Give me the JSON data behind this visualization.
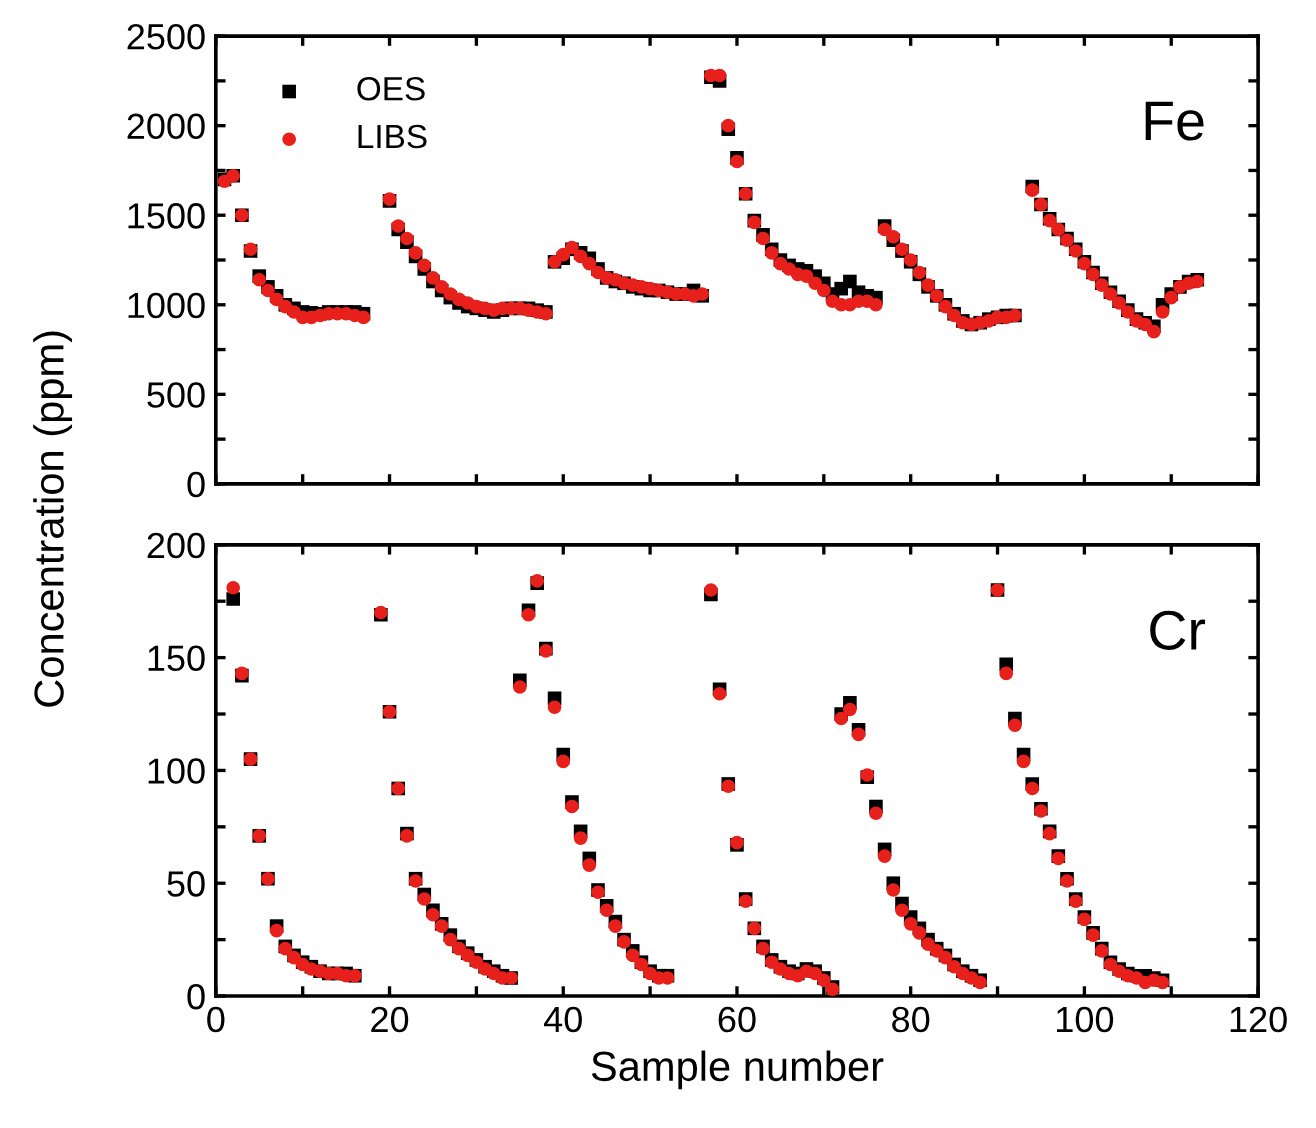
{
  "chart_data": [
    {
      "type": "scatter",
      "ylabel": "Concentration (ppm)",
      "annotations": [
        "Fe"
      ],
      "legend": "top left",
      "tick_labels": "y",
      "grid": false,
      "xlim": [
        0,
        120
      ],
      "xticks": [
        0,
        {
          "value": 10,
          "label": null
        },
        20,
        {
          "value": 30,
          "label": null
        },
        40,
        {
          "value": 50,
          "label": null
        },
        60,
        {
          "value": 70,
          "label": null
        },
        80,
        {
          "value": 90,
          "label": null
        },
        100,
        {
          "value": 110,
          "label": null
        },
        120
      ],
      "ylim": [
        0,
        2500
      ],
      "yticks": [
        0,
        {
          "value": 250,
          "label": null
        },
        500,
        {
          "value": 750,
          "label": null
        },
        1000,
        {
          "value": 1250,
          "label": null
        },
        1500,
        {
          "value": 1750,
          "label": null
        },
        2000,
        {
          "value": 2250,
          "label": null
        },
        2500
      ],
      "x": [
        1,
        2,
        3,
        4,
        5,
        6,
        7,
        8,
        9,
        10,
        11,
        12,
        13,
        14,
        15,
        16,
        17,
        18,
        19,
        20,
        21,
        22,
        23,
        24,
        25,
        26,
        27,
        28,
        29,
        30,
        31,
        32,
        33,
        34,
        35,
        36,
        37,
        38,
        39,
        40,
        41,
        42,
        43,
        44,
        45,
        46,
        47,
        48,
        49,
        50,
        51,
        52,
        53,
        54,
        55,
        56,
        57,
        58,
        59,
        60,
        61,
        62,
        63,
        64,
        65,
        66,
        67,
        68,
        69,
        70,
        71,
        72,
        73,
        74,
        75,
        76,
        77,
        78,
        79,
        80,
        81,
        82,
        83,
        84,
        85,
        86,
        87,
        88,
        89,
        90,
        91,
        92,
        93,
        94,
        95,
        96,
        97,
        98,
        99,
        100,
        101,
        102,
        103,
        104,
        105,
        106,
        107,
        108,
        109,
        110,
        111,
        112,
        113
      ],
      "series": [
        {
          "name": "OES",
          "color": "#000000",
          "marker": "square",
          "values": [
            1700,
            1720,
            1500,
            1300,
            1160,
            1100,
            1050,
            1000,
            980,
            960,
            955,
            950,
            960,
            960,
            960,
            960,
            950,
            null,
            null,
            1580,
            1420,
            1350,
            1270,
            1200,
            1130,
            1080,
            1040,
            1010,
            990,
            980,
            970,
            960,
            970,
            980,
            980,
            980,
            970,
            960,
            1240,
            1260,
            1310,
            1290,
            1260,
            1200,
            1150,
            1130,
            1120,
            1100,
            1090,
            1080,
            1080,
            1070,
            1060,
            1060,
            1080,
            1050,
            2270,
            2250,
            1980,
            1820,
            1620,
            1470,
            1390,
            1310,
            1250,
            1220,
            1200,
            1190,
            1160,
            1120,
            1060,
            1090,
            1130,
            1070,
            1050,
            1040,
            1440,
            1360,
            1300,
            1240,
            1170,
            1100,
            1050,
            1000,
            950,
            910,
            890,
            900,
            920,
            930,
            940,
            940,
            null,
            1660,
            1560,
            1480,
            1420,
            1370,
            1310,
            1240,
            1180,
            1120,
            1070,
            1020,
            970,
            920,
            900,
            880,
            1000,
            1060,
            1100,
            1130,
            1140
          ]
        },
        {
          "name": "LIBS",
          "color": "#e8201c",
          "marker": "circle",
          "values": [
            1690,
            1720,
            1500,
            1310,
            1140,
            1080,
            1030,
            990,
            960,
            930,
            930,
            940,
            950,
            950,
            950,
            940,
            930,
            null,
            null,
            1590,
            1440,
            1370,
            1290,
            1220,
            1150,
            1100,
            1060,
            1030,
            1010,
            990,
            980,
            970,
            980,
            980,
            980,
            970,
            960,
            950,
            1240,
            1280,
            1320,
            1270,
            1230,
            1180,
            1150,
            1140,
            1120,
            1110,
            1100,
            1090,
            1080,
            1070,
            1060,
            1060,
            1050,
            1060,
            2280,
            2280,
            2000,
            1800,
            1620,
            1460,
            1370,
            1290,
            1230,
            1200,
            1170,
            1160,
            1120,
            1080,
            1020,
            1000,
            1000,
            1020,
            1020,
            1000,
            1420,
            1380,
            1310,
            1250,
            1180,
            1110,
            1050,
            990,
            940,
            900,
            890,
            900,
            910,
            930,
            930,
            940,
            null,
            1640,
            1560,
            1470,
            1420,
            1360,
            1300,
            1230,
            1170,
            1110,
            1060,
            1010,
            960,
            910,
            890,
            850,
            960,
            1040,
            1100,
            1120,
            1130
          ]
        }
      ]
    },
    {
      "type": "scatter",
      "xlabel": "Sample number",
      "annotations": [
        "Cr"
      ],
      "grid": false,
      "xlim": [
        0,
        120
      ],
      "xticks": [
        0,
        {
          "value": 10,
          "label": null
        },
        20,
        {
          "value": 30,
          "label": null
        },
        40,
        {
          "value": 50,
          "label": null
        },
        60,
        {
          "value": 70,
          "label": null
        },
        80,
        {
          "value": 90,
          "label": null
        },
        100,
        {
          "value": 110,
          "label": null
        },
        120
      ],
      "ylim": [
        0,
        200
      ],
      "yticks": [
        0,
        {
          "value": 25,
          "label": null
        },
        50,
        {
          "value": 75,
          "label": null
        },
        100,
        {
          "value": 125,
          "label": null
        },
        150,
        {
          "value": 175,
          "label": null
        },
        200
      ],
      "x": [
        2,
        3,
        4,
        5,
        6,
        7,
        8,
        9,
        10,
        11,
        12,
        13,
        14,
        15,
        16,
        17,
        18,
        19,
        20,
        21,
        22,
        23,
        24,
        25,
        26,
        27,
        28,
        29,
        30,
        31,
        32,
        33,
        34,
        35,
        36,
        37,
        38,
        39,
        40,
        41,
        42,
        43,
        44,
        45,
        46,
        47,
        48,
        49,
        50,
        51,
        52,
        53,
        54,
        55,
        56,
        57,
        58,
        59,
        60,
        61,
        62,
        63,
        64,
        65,
        66,
        67,
        68,
        69,
        70,
        71,
        72,
        73,
        74,
        75,
        76,
        77,
        78,
        79,
        80,
        81,
        82,
        83,
        84,
        85,
        86,
        87,
        88,
        89,
        90,
        91,
        92,
        93,
        94,
        95,
        96,
        97,
        98,
        99,
        100,
        101,
        102,
        103,
        104,
        105,
        106,
        107,
        108,
        109
      ],
      "series": [
        {
          "color": "#000000",
          "marker": "square",
          "values": [
            176,
            142,
            105,
            71,
            52,
            31,
            22,
            18,
            15,
            13,
            11,
            10,
            10,
            10,
            9,
            null,
            null,
            169,
            126,
            92,
            72,
            52,
            45,
            38,
            32,
            27,
            22,
            19,
            16,
            13,
            11,
            9,
            8,
            140,
            171,
            183,
            154,
            132,
            107,
            86,
            73,
            61,
            47,
            40,
            33,
            25,
            20,
            15,
            11,
            9,
            9,
            null,
            null,
            null,
            null,
            178,
            136,
            94,
            67,
            43,
            30,
            22,
            16,
            13,
            11,
            10,
            12,
            11,
            8,
            4,
            125,
            130,
            118,
            97,
            84,
            65,
            50,
            41,
            35,
            30,
            25,
            21,
            18,
            14,
            11,
            9,
            7,
            null,
            180,
            147,
            123,
            107,
            94,
            83,
            73,
            62,
            52,
            43,
            35,
            28,
            21,
            15,
            12,
            10,
            9,
            9,
            8,
            7
          ]
        },
        {
          "color": "#e8201c",
          "marker": "circle",
          "values": [
            181,
            143,
            105,
            71,
            52,
            29,
            21,
            17,
            14,
            12,
            11,
            10,
            10,
            9,
            9,
            null,
            null,
            170,
            126,
            92,
            71,
            51,
            43,
            36,
            31,
            25,
            21,
            18,
            15,
            12,
            10,
            8,
            8,
            137,
            169,
            184,
            153,
            128,
            104,
            84,
            70,
            58,
            46,
            38,
            31,
            24,
            18,
            14,
            10,
            8,
            8,
            null,
            null,
            null,
            null,
            180,
            134,
            93,
            68,
            42,
            30,
            21,
            15,
            12,
            10,
            9,
            11,
            10,
            7,
            3,
            123,
            127,
            116,
            98,
            81,
            62,
            47,
            38,
            32,
            28,
            23,
            20,
            17,
            13,
            10,
            8,
            6,
            null,
            180,
            143,
            120,
            104,
            92,
            82,
            72,
            61,
            51,
            42,
            34,
            27,
            20,
            14,
            11,
            9,
            8,
            6,
            7,
            6
          ]
        }
      ]
    }
  ]
}
